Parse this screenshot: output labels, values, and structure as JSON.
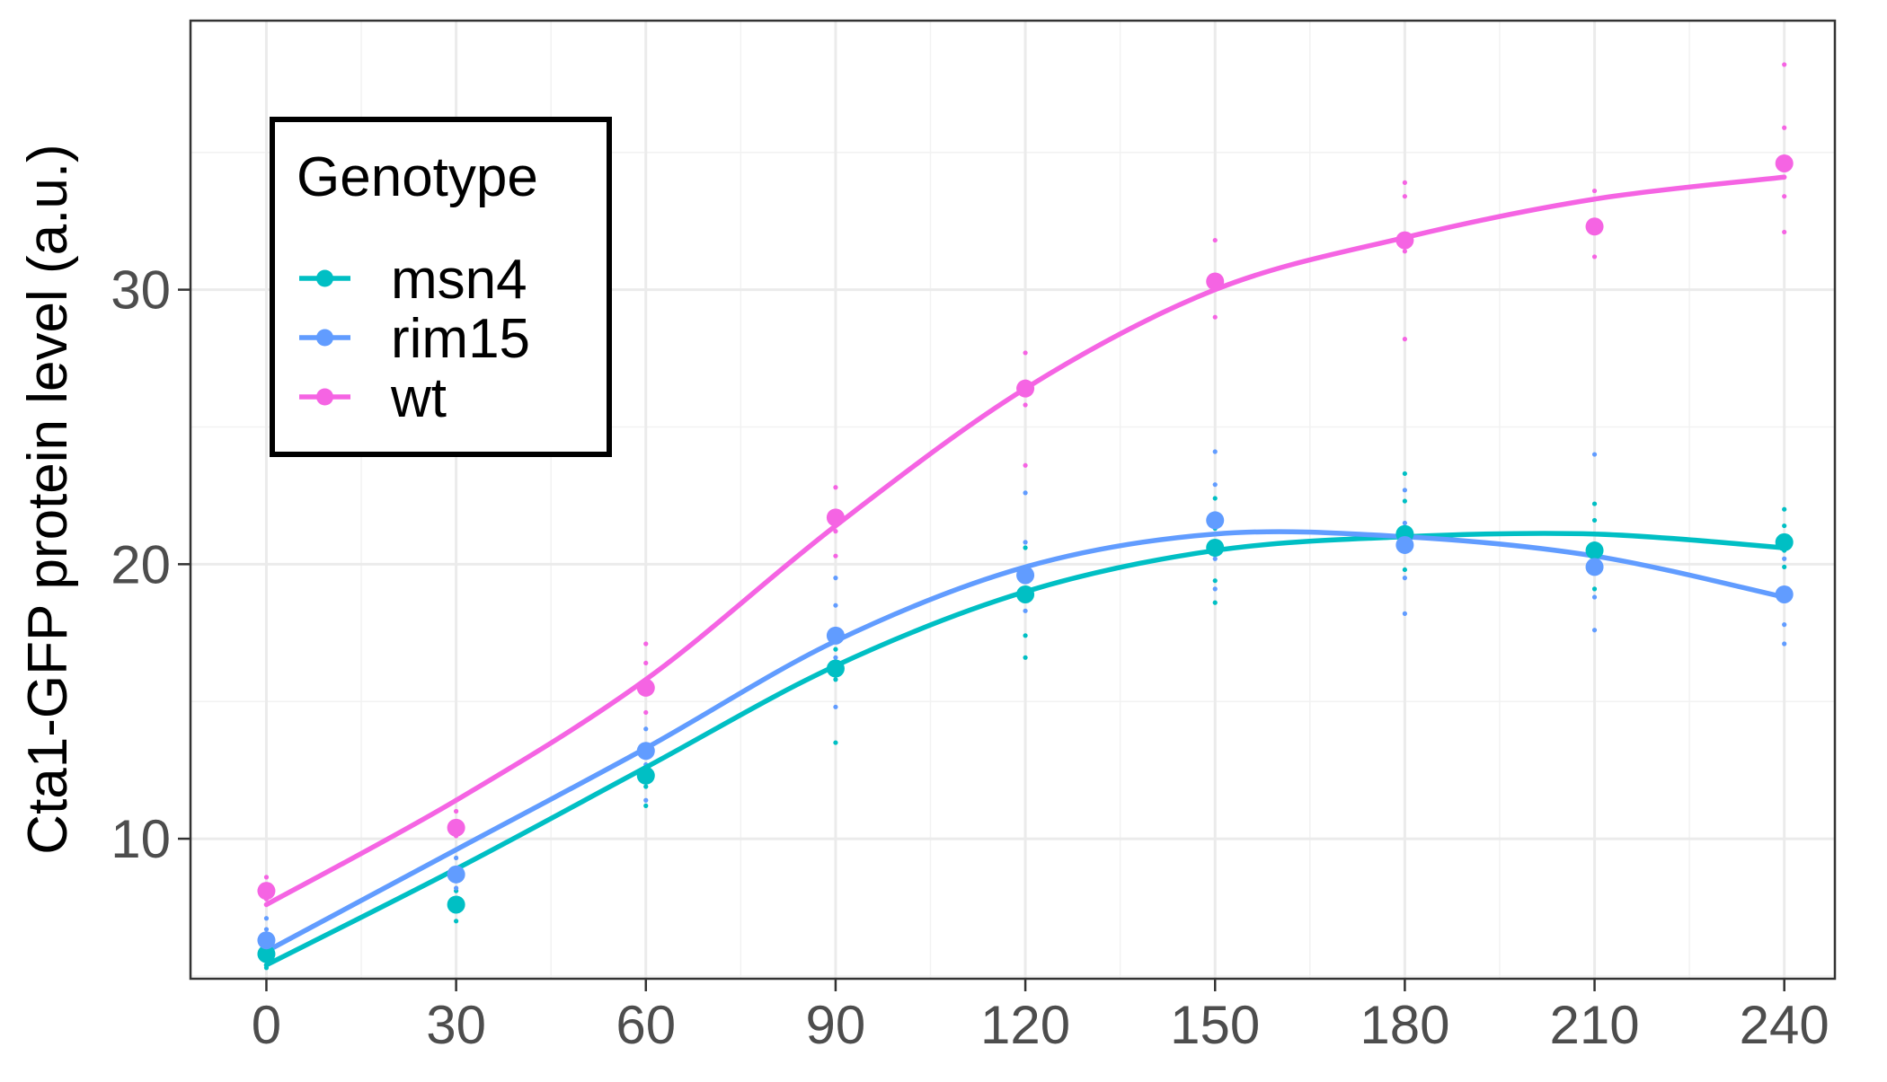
{
  "chart_data": {
    "type": "line",
    "title": "",
    "xlabel": "",
    "ylabel": "Cta1-GFP protein level (a.u.)",
    "x": [
      0,
      30,
      60,
      90,
      120,
      150,
      180,
      210,
      240
    ],
    "x_ticks": [
      "0",
      "30",
      "60",
      "90",
      "120",
      "150",
      "180",
      "210",
      "240"
    ],
    "y_ticks": [
      "10",
      "20",
      "30"
    ],
    "xlim": [
      -12,
      248
    ],
    "ylim": [
      4.9,
      39.8
    ],
    "grid": true,
    "legend": {
      "title": "Genotype",
      "position": "top-left"
    },
    "series": [
      {
        "name": "msn4",
        "color": "#00BFC4",
        "means": [
          5.8,
          7.6,
          12.3,
          16.2,
          18.9,
          20.6,
          21.1,
          20.5,
          20.8
        ],
        "fit": [
          5.4,
          8.9,
          12.6,
          16.3,
          19.0,
          20.5,
          21.0,
          21.1,
          20.6
        ],
        "replicates": [
          [
            5.3,
            5.6,
            6.1
          ],
          [
            7.0,
            7.4,
            8.1
          ],
          [
            11.2,
            11.9,
            12.6
          ],
          [
            13.5,
            15.8,
            16.9
          ],
          [
            16.6,
            17.4,
            19.8,
            20.6
          ],
          [
            18.6,
            19.4,
            21.3,
            22.4
          ],
          [
            19.8,
            20.7,
            22.3,
            23.3
          ],
          [
            19.1,
            20.0,
            21.6,
            22.2
          ],
          [
            19.9,
            20.5,
            21.4,
            22.0
          ]
        ]
      },
      {
        "name": "rim15",
        "color": "#619CFF",
        "means": [
          6.3,
          8.7,
          13.2,
          17.4,
          19.6,
          21.6,
          20.7,
          19.9,
          18.9
        ],
        "fit": [
          5.9,
          9.6,
          13.3,
          17.2,
          19.9,
          21.1,
          21.0,
          20.3,
          18.8
        ],
        "replicates": [
          [
            6.0,
            6.7,
            7.1
          ],
          [
            8.2,
            9.3
          ],
          [
            11.4,
            12.7,
            14.0
          ],
          [
            14.8,
            16.6,
            18.5,
            19.5
          ],
          [
            18.3,
            20.8,
            22.6
          ],
          [
            19.1,
            20.2,
            22.9,
            24.1
          ],
          [
            18.2,
            19.5,
            21.5,
            22.7
          ],
          [
            17.6,
            18.8,
            21.1,
            24.0
          ],
          [
            17.1,
            17.8,
            20.2
          ]
        ]
      },
      {
        "name": "wt",
        "color": "#F564E3",
        "means": [
          8.1,
          10.4,
          15.5,
          21.7,
          26.4,
          30.3,
          31.8,
          32.3,
          34.6
        ],
        "fit": [
          7.6,
          11.4,
          15.8,
          21.4,
          26.4,
          30.0,
          31.9,
          33.3,
          34.1
        ],
        "replicates": [
          [
            7.8,
            8.6
          ],
          [
            10.1,
            11.0
          ],
          [
            14.6,
            16.4,
            17.1
          ],
          [
            20.3,
            21.2,
            22.8
          ],
          [
            23.6,
            25.8,
            27.7
          ],
          [
            29.0,
            30.4,
            31.8
          ],
          [
            28.2,
            31.4,
            33.4,
            33.9
          ],
          [
            31.2,
            33.6
          ],
          [
            32.1,
            33.4,
            35.9,
            38.2
          ]
        ]
      }
    ]
  }
}
